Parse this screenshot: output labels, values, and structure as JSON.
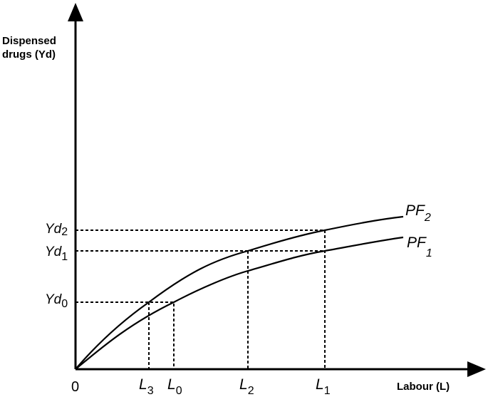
{
  "diagram": {
    "y_axis_title_lines": [
      "Dispensed",
      "drugs (Yd)"
    ],
    "x_axis_title": "Labour (L)",
    "origin_label": "0",
    "curves": [
      {
        "base": "PF",
        "sub": "2"
      },
      {
        "base": "PF",
        "sub": "1"
      }
    ],
    "y_levels": [
      {
        "base": "Yd",
        "sub": "2"
      },
      {
        "base": "Yd",
        "sub": "1"
      },
      {
        "base": "Yd",
        "sub": "0"
      }
    ],
    "x_levels": [
      {
        "base": "L",
        "sub": "3"
      },
      {
        "base": "L",
        "sub": "0"
      },
      {
        "base": "L",
        "sub": "2"
      },
      {
        "base": "L",
        "sub": "1"
      }
    ]
  }
}
